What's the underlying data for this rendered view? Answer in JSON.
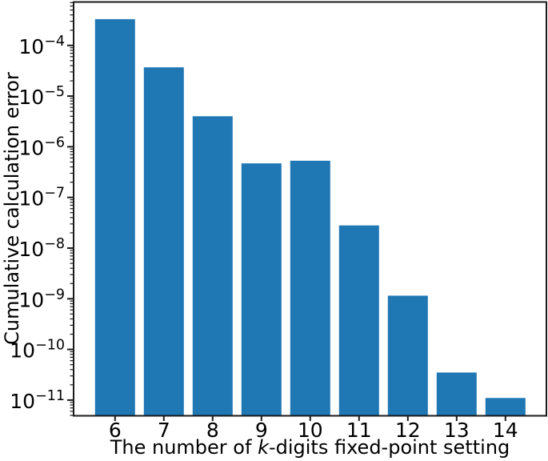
{
  "figure": {
    "ylabel": "Cumulative calculation error",
    "xlabel": {
      "prefix": "The number of ",
      "italic_var": "k",
      "suffix": "-digits fixed-point setting"
    }
  },
  "chart_data": {
    "type": "bar",
    "title": "",
    "categories": [
      "6",
      "7",
      "8",
      "9",
      "10",
      "11",
      "12",
      "13",
      "14"
    ],
    "values": [
      0.00033,
      3.7e-05,
      4e-06,
      4.7e-07,
      5.3e-07,
      2.8e-08,
      1.15e-09,
      3.5e-11,
      1.1e-11
    ],
    "xlabel": "The number of k-digits fixed-point setting",
    "ylabel": "Cumulative calculation error",
    "yscale": "log",
    "ylim": [
      4.9e-12,
      0.00072
    ],
    "y_tick_exponents": [
      -4,
      -5,
      -6,
      -7,
      -8,
      -9,
      -10,
      -11
    ],
    "grid": false,
    "legend": false,
    "bar_color": "#1f77b4",
    "axis_color": "#1a1a1a",
    "text_color": "#000000"
  }
}
